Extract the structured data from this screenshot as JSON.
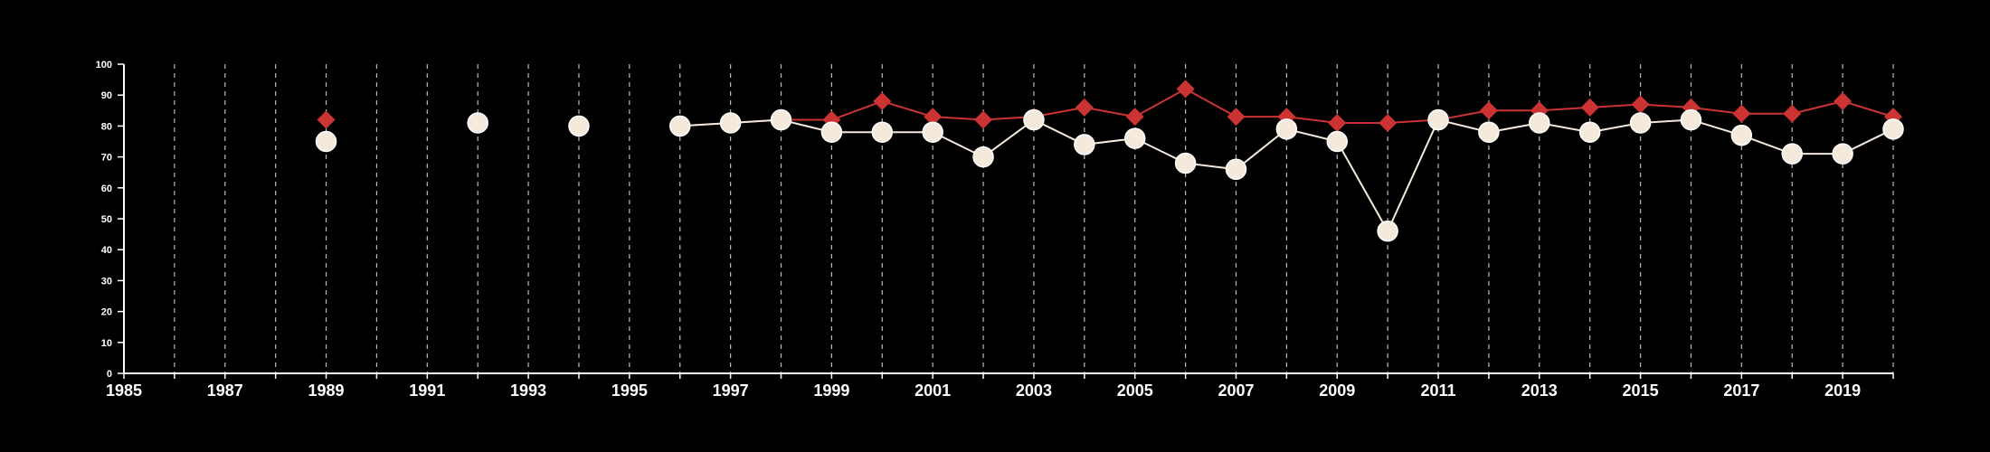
{
  "chart_data": {
    "type": "line",
    "xlim": [
      1985,
      2020
    ],
    "ylim": [
      0,
      100
    ],
    "x_ticks": [
      1985,
      1987,
      1989,
      1991,
      1993,
      1995,
      1997,
      1999,
      2001,
      2003,
      2005,
      2007,
      2009,
      2011,
      2013,
      2015,
      2017,
      2019
    ],
    "y_ticks": [
      0,
      10,
      20,
      30,
      40,
      50,
      60,
      70,
      80,
      90,
      100
    ],
    "grid": "vertical dashed lines at each year",
    "series": [
      {
        "marker": "circle",
        "color": "#f5e9dc",
        "x": [
          1989,
          1992,
          1994,
          1996,
          1997,
          1998,
          1999,
          2000,
          2001,
          2002,
          2003,
          2004,
          2005,
          2006,
          2007,
          2008,
          2009,
          2010,
          2011,
          2012,
          2013,
          2014,
          2015,
          2016,
          2017,
          2018,
          2019,
          2020
        ],
        "y": [
          75,
          81,
          80,
          80,
          81,
          82,
          78,
          78,
          78,
          70,
          82,
          74,
          76,
          68,
          66,
          79,
          75,
          46,
          82,
          78,
          81,
          78,
          81,
          82,
          77,
          71,
          71,
          79
        ]
      },
      {
        "marker": "diamond",
        "color": "#cc3333",
        "x": [
          1989,
          1992,
          1994,
          1996,
          1997,
          1998,
          1999,
          2000,
          2001,
          2002,
          2003,
          2004,
          2005,
          2006,
          2007,
          2008,
          2009,
          2010,
          2011,
          2012,
          2013,
          2014,
          2015,
          2016,
          2017,
          2018,
          2019,
          2020
        ],
        "y": [
          82,
          81,
          80,
          80,
          81,
          82,
          82,
          88,
          83,
          82,
          83,
          86,
          83,
          92,
          83,
          83,
          81,
          81,
          82,
          85,
          85,
          86,
          87,
          86,
          84,
          84,
          88,
          83
        ]
      }
    ]
  }
}
